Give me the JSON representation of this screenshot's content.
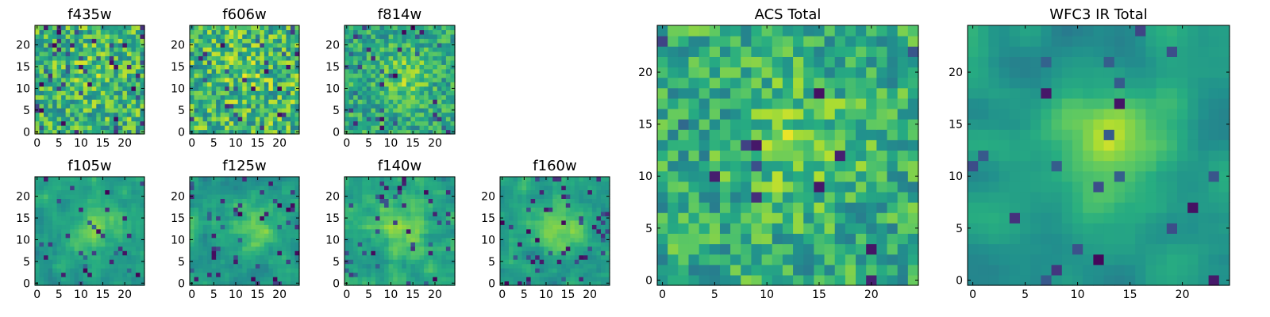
{
  "chart_data": [
    {
      "type": "heatmap",
      "title": "f435w",
      "grid_size": 25,
      "colormap": "viridis",
      "xlim": [
        0,
        24
      ],
      "ylim": [
        0,
        24
      ],
      "xticks": [
        0,
        5,
        10,
        15,
        20
      ],
      "yticks": [
        0,
        5,
        10,
        15,
        20
      ],
      "seed": 11,
      "smooth": 0,
      "blob": 0.15,
      "dark_frac": 0.06
    },
    {
      "type": "heatmap",
      "title": "f606w",
      "grid_size": 25,
      "colormap": "viridis",
      "xlim": [
        0,
        24
      ],
      "ylim": [
        0,
        24
      ],
      "xticks": [
        0,
        5,
        10,
        15,
        20
      ],
      "yticks": [
        0,
        5,
        10,
        15,
        20
      ],
      "seed": 23,
      "smooth": 0,
      "blob": 0.1,
      "dark_frac": 0.05
    },
    {
      "type": "heatmap",
      "title": "f814w",
      "grid_size": 25,
      "colormap": "viridis",
      "xlim": [
        0,
        24
      ],
      "ylim": [
        0,
        24
      ],
      "xticks": [
        0,
        5,
        10,
        15,
        20
      ],
      "yticks": [
        0,
        5,
        10,
        15,
        20
      ],
      "seed": 37,
      "smooth": 0,
      "blob": 0.35,
      "dark_frac": 0.05
    },
    {
      "type": "heatmap",
      "title": "f105w",
      "grid_size": 25,
      "colormap": "viridis",
      "xlim": [
        0,
        24
      ],
      "ylim": [
        0,
        24
      ],
      "xticks": [
        0,
        5,
        10,
        15,
        20
      ],
      "yticks": [
        0,
        5,
        10,
        15,
        20
      ],
      "seed": 41,
      "smooth": 1,
      "blob": 0.5,
      "dark_frac": 0.05
    },
    {
      "type": "heatmap",
      "title": "f125w",
      "grid_size": 25,
      "colormap": "viridis",
      "xlim": [
        0,
        24
      ],
      "ylim": [
        0,
        24
      ],
      "xticks": [
        0,
        5,
        10,
        15,
        20
      ],
      "yticks": [
        0,
        5,
        10,
        15,
        20
      ],
      "seed": 53,
      "smooth": 1,
      "blob": 0.45,
      "dark_frac": 0.06
    },
    {
      "type": "heatmap",
      "title": "f140w",
      "grid_size": 25,
      "colormap": "viridis",
      "xlim": [
        0,
        24
      ],
      "ylim": [
        0,
        24
      ],
      "xticks": [
        0,
        5,
        10,
        15,
        20
      ],
      "yticks": [
        0,
        5,
        10,
        15,
        20
      ],
      "seed": 67,
      "smooth": 1,
      "blob": 0.45,
      "dark_frac": 0.07
    },
    {
      "type": "heatmap",
      "title": "f160w",
      "grid_size": 25,
      "colormap": "viridis",
      "xlim": [
        0,
        24
      ],
      "ylim": [
        0,
        24
      ],
      "xticks": [
        0,
        5,
        10,
        15,
        20
      ],
      "yticks": [
        0,
        5,
        10,
        15,
        20
      ],
      "seed": 79,
      "smooth": 1,
      "blob": 0.5,
      "dark_frac": 0.07
    },
    {
      "type": "heatmap",
      "title": "ACS Total",
      "grid_size": 25,
      "colormap": "viridis",
      "xlim": [
        0,
        24
      ],
      "ylim": [
        0,
        24
      ],
      "xticks": [
        0,
        5,
        10,
        15,
        20
      ],
      "yticks": [
        0,
        5,
        10,
        15,
        20
      ],
      "seed": 97,
      "smooth": 0,
      "blob": 0.3,
      "dark_frac": 0.03
    },
    {
      "type": "heatmap",
      "title": "WFC3 IR Total",
      "grid_size": 25,
      "colormap": "viridis",
      "xlim": [
        0,
        24
      ],
      "ylim": [
        0,
        24
      ],
      "xticks": [
        0,
        5,
        10,
        15,
        20
      ],
      "yticks": [
        0,
        5,
        10,
        15,
        20
      ],
      "seed": 113,
      "smooth": 2,
      "blob": 0.6,
      "dark_frac": 0.03
    }
  ]
}
